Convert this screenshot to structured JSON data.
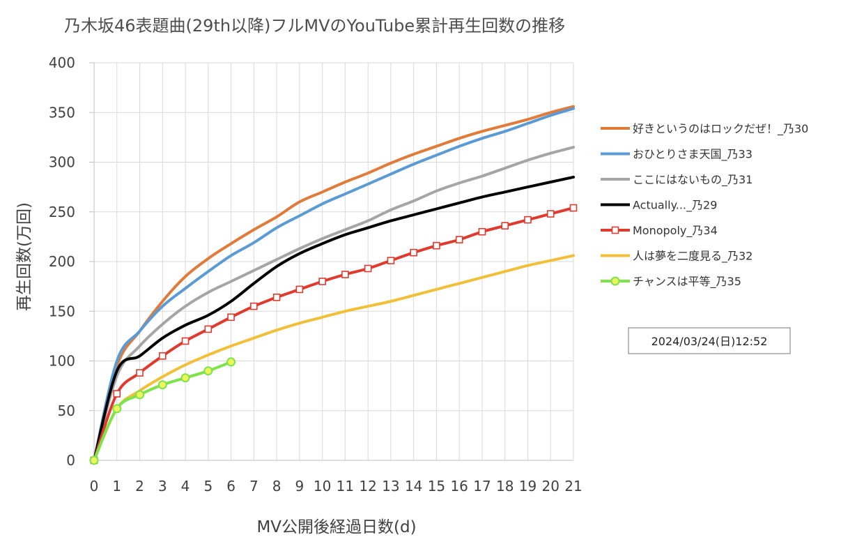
{
  "chart_data": {
    "type": "line",
    "title": "乃木坂46表題曲(29th以降)フルMVのYouTube累計再生回数の推移",
    "xlabel": "MV公開後経過日数(d)",
    "ylabel": "再生回数(万回)",
    "xlim": [
      0,
      21
    ],
    "ylim": [
      0,
      400
    ],
    "x_ticks": [
      "0",
      "1",
      "2",
      "3",
      "4",
      "5",
      "6",
      "7",
      "8",
      "9",
      "10",
      "11",
      "12",
      "13",
      "14",
      "15",
      "16",
      "17",
      "18",
      "19",
      "20",
      "21"
    ],
    "y_ticks": [
      "0",
      "50",
      "100",
      "150",
      "200",
      "250",
      "300",
      "350",
      "400"
    ],
    "grid": true,
    "legend_position": "right",
    "annotation": "2024/03/24(日)12:52",
    "series": [
      {
        "name": "好きというのはロックだぜ！_乃30",
        "color": "#e07b39",
        "marker": "none",
        "x": [
          0,
          1,
          2,
          3,
          4,
          5,
          6,
          7,
          8,
          9,
          10,
          11,
          12,
          13,
          14,
          15,
          16,
          17,
          18,
          19,
          20,
          21
        ],
        "y": [
          0,
          95,
          130,
          160,
          185,
          203,
          218,
          232,
          245,
          260,
          270,
          280,
          289,
          299,
          308,
          316,
          324,
          331,
          337,
          343,
          350,
          356
        ]
      },
      {
        "name": "おひとりさま天国_乃33",
        "color": "#5b9bd5",
        "marker": "none",
        "x": [
          0,
          1,
          2,
          3,
          4,
          5,
          6,
          7,
          8,
          9,
          10,
          11,
          12,
          13,
          14,
          15,
          16,
          17,
          18,
          19,
          20,
          21
        ],
        "y": [
          0,
          100,
          130,
          155,
          173,
          190,
          206,
          219,
          234,
          246,
          258,
          268,
          278,
          288,
          298,
          307,
          316,
          324,
          331,
          339,
          347,
          354
        ]
      },
      {
        "name": "ここにはないもの_乃31",
        "color": "#a5a5a5",
        "marker": "none",
        "x": [
          0,
          1,
          2,
          3,
          4,
          5,
          6,
          7,
          8,
          9,
          10,
          11,
          12,
          13,
          14,
          15,
          16,
          17,
          18,
          19,
          20,
          21
        ],
        "y": [
          0,
          85,
          115,
          137,
          155,
          169,
          180,
          191,
          202,
          213,
          223,
          232,
          241,
          252,
          261,
          271,
          279,
          286,
          294,
          302,
          309,
          315
        ]
      },
      {
        "name": "Actually..._乃29",
        "color": "#000000",
        "marker": "none",
        "x": [
          0,
          1,
          2,
          3,
          4,
          5,
          6,
          7,
          8,
          9,
          10,
          11,
          12,
          13,
          14,
          15,
          16,
          17,
          18,
          19,
          20,
          21
        ],
        "y": [
          0,
          90,
          105,
          123,
          136,
          146,
          160,
          178,
          195,
          208,
          218,
          227,
          234,
          241,
          247,
          253,
          259,
          265,
          270,
          275,
          280,
          285
        ]
      },
      {
        "name": "Monopoly_乃34",
        "color": "#e03a2f",
        "marker": "square",
        "x": [
          0,
          1,
          2,
          3,
          4,
          5,
          6,
          7,
          8,
          9,
          10,
          11,
          12,
          13,
          14,
          15,
          16,
          17,
          18,
          19,
          20,
          21
        ],
        "y": [
          0,
          67,
          88,
          105,
          120,
          132,
          144,
          155,
          164,
          172,
          180,
          187,
          193,
          201,
          209,
          216,
          222,
          230,
          236,
          242,
          248,
          254
        ]
      },
      {
        "name": "人は夢を二度見る_乃32",
        "color": "#f2c038",
        "marker": "none",
        "x": [
          0,
          1,
          2,
          3,
          4,
          5,
          6,
          7,
          8,
          9,
          10,
          11,
          12,
          13,
          14,
          15,
          16,
          17,
          18,
          19,
          20,
          21
        ],
        "y": [
          0,
          52,
          70,
          84,
          96,
          106,
          115,
          123,
          131,
          138,
          144,
          150,
          155,
          160,
          166,
          172,
          178,
          184,
          190,
          196,
          201,
          206
        ]
      },
      {
        "name": "チャンスは平等_乃35",
        "color": "#7ce34a",
        "marker": "circle",
        "x": [
          0,
          1,
          2,
          3,
          4,
          5,
          6
        ],
        "y": [
          0,
          52,
          66,
          76,
          83,
          90,
          99
        ]
      }
    ]
  }
}
